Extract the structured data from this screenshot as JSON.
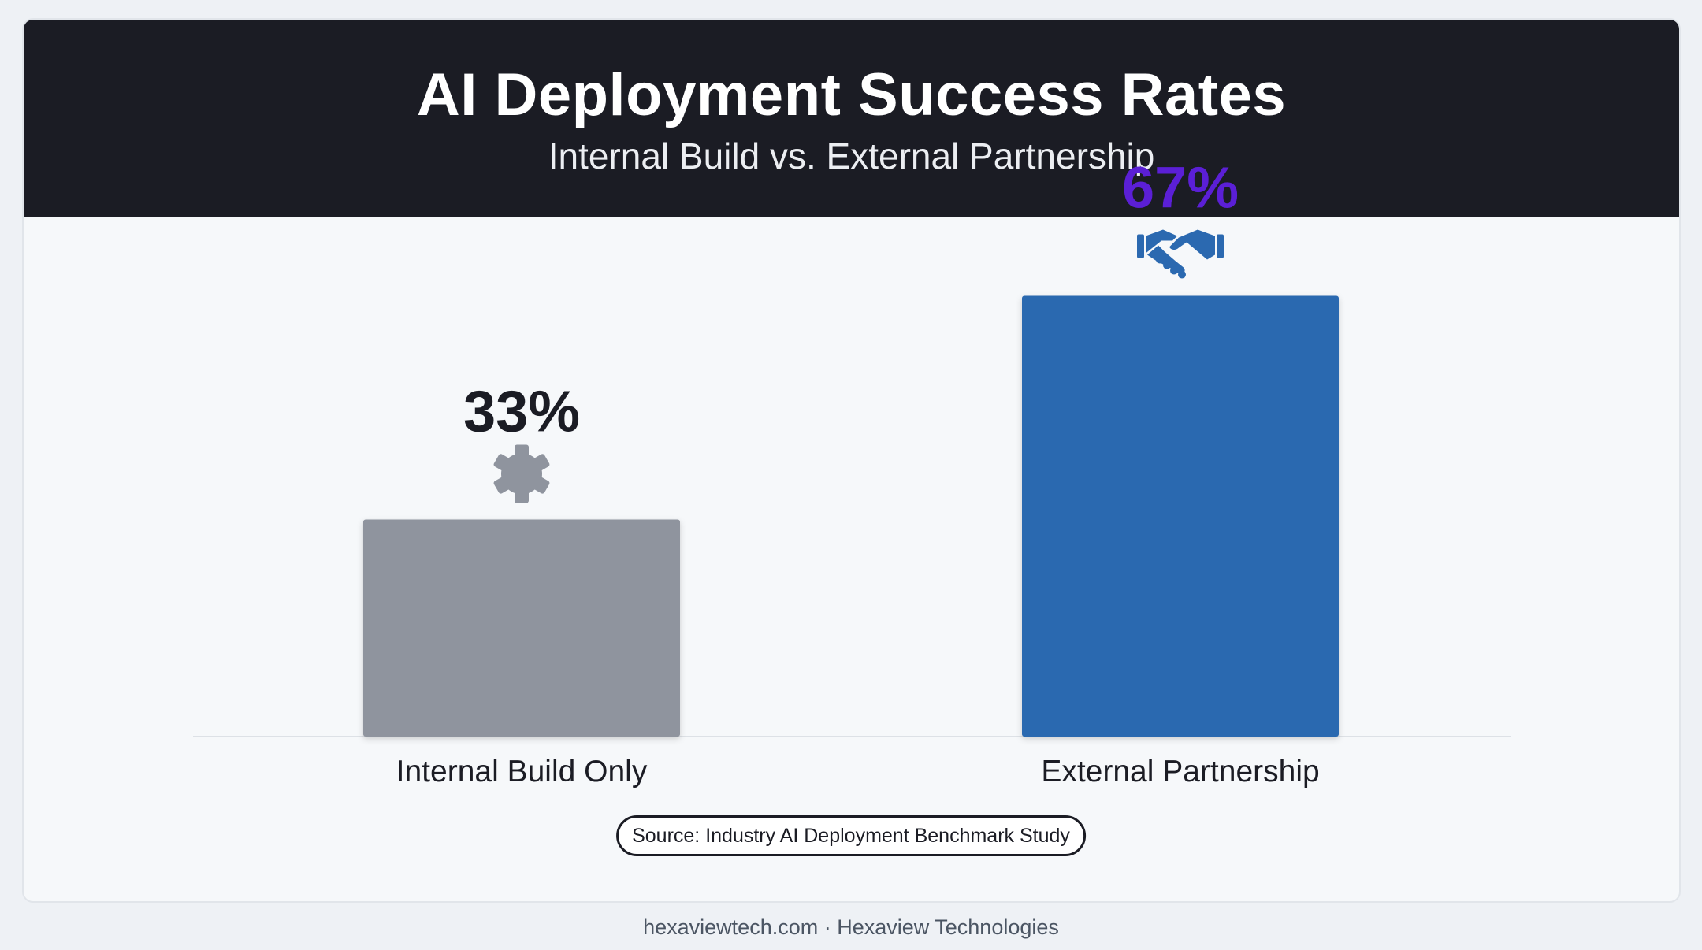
{
  "header": {
    "title": "AI Deployment Success Rates",
    "subtitle": "Internal Build vs. External Partnership"
  },
  "chart_data": {
    "type": "bar",
    "title": "AI Deployment Success Rates",
    "subtitle": "Internal Build vs. External Partnership",
    "categories": [
      "Internal Build Only",
      "External Partnership"
    ],
    "values": [
      33,
      67
    ],
    "value_labels": [
      "33%",
      "67%"
    ],
    "unit": "%",
    "ylim": [
      0,
      100
    ],
    "grid": false,
    "legend": "none",
    "bar_colors": [
      "#8f949e",
      "#2b69b0"
    ],
    "label_colors": [
      "#1b1c24",
      "#5b1fd6"
    ],
    "icons": [
      "gear-icon",
      "handshake-icon"
    ]
  },
  "source": "Source: Industry AI Deployment Benchmark Study",
  "footer": "hexaviewtech.com · Hexaview Technologies",
  "colors": {
    "header_bg": "#1b1c24",
    "page_bg": "#eef1f5",
    "accent_purple": "#5b1fd6",
    "bar_gray": "#8f949e",
    "bar_blue": "#2b69b0"
  }
}
